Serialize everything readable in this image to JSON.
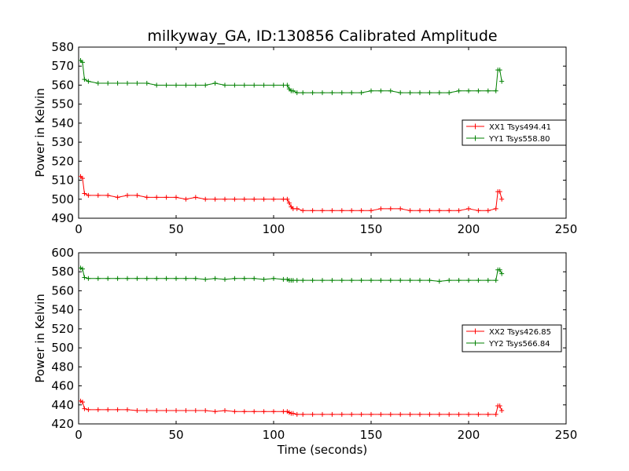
{
  "title": "milkyway_GA, ID:130856 Calibrated Amplitude",
  "colors": {
    "xx": "#ff0000",
    "yy": "#008000"
  },
  "chart_data": [
    {
      "type": "line",
      "title": "milkyway_GA, ID:130856 Calibrated Amplitude",
      "xlabel": "",
      "ylabel": "Power in Kelvin",
      "xlim": [
        0,
        250
      ],
      "ylim": [
        490,
        580
      ],
      "xticks": [
        0,
        50,
        100,
        150,
        200,
        250
      ],
      "yticks": [
        490,
        500,
        510,
        520,
        530,
        540,
        550,
        560,
        570,
        580
      ],
      "grid": false,
      "legend_position": "center-right",
      "marker": "plus",
      "series": [
        {
          "name": "XX1 Tsys494.41",
          "color": "#ff0000",
          "x": [
            1,
            2,
            3,
            5,
            10,
            15,
            20,
            25,
            30,
            35,
            40,
            45,
            50,
            55,
            60,
            65,
            70,
            75,
            80,
            85,
            90,
            95,
            100,
            105,
            107,
            108,
            109,
            110,
            112,
            115,
            120,
            125,
            130,
            135,
            140,
            145,
            150,
            155,
            160,
            165,
            170,
            175,
            180,
            185,
            190,
            195,
            200,
            205,
            210,
            214,
            215,
            216,
            217
          ],
          "y": [
            512,
            511,
            503,
            502,
            502,
            502,
            501,
            502,
            502,
            501,
            501,
            501,
            501,
            500,
            501,
            500,
            500,
            500,
            500,
            500,
            500,
            500,
            500,
            500,
            500,
            498,
            496,
            495,
            495,
            494,
            494,
            494,
            494,
            494,
            494,
            494,
            494,
            495,
            495,
            495,
            494,
            494,
            494,
            494,
            494,
            494,
            495,
            494,
            494,
            495,
            504,
            504,
            500
          ]
        },
        {
          "name": "YY1 Tsys558.80",
          "color": "#008000",
          "x": [
            1,
            2,
            3,
            5,
            10,
            15,
            20,
            25,
            30,
            35,
            40,
            45,
            50,
            55,
            60,
            65,
            70,
            75,
            80,
            85,
            90,
            95,
            100,
            105,
            107,
            108,
            109,
            110,
            112,
            115,
            120,
            125,
            130,
            135,
            140,
            145,
            150,
            155,
            160,
            165,
            170,
            175,
            180,
            185,
            190,
            195,
            200,
            205,
            210,
            214,
            215,
            216,
            217
          ],
          "y": [
            573,
            572,
            563,
            562,
            561,
            561,
            561,
            561,
            561,
            561,
            560,
            560,
            560,
            560,
            560,
            560,
            561,
            560,
            560,
            560,
            560,
            560,
            560,
            560,
            560,
            558,
            557,
            557,
            556,
            556,
            556,
            556,
            556,
            556,
            556,
            556,
            557,
            557,
            557,
            556,
            556,
            556,
            556,
            556,
            556,
            557,
            557,
            557,
            557,
            557,
            568,
            568,
            562
          ]
        }
      ]
    },
    {
      "type": "line",
      "title": "",
      "xlabel": "Time (seconds)",
      "ylabel": "Power in Kelvin",
      "xlim": [
        0,
        250
      ],
      "ylim": [
        420,
        600
      ],
      "xticks": [
        0,
        50,
        100,
        150,
        200,
        250
      ],
      "yticks": [
        420,
        440,
        460,
        480,
        500,
        520,
        540,
        560,
        580,
        600
      ],
      "grid": false,
      "legend_position": "center-right",
      "marker": "plus",
      "series": [
        {
          "name": "XX2 Tsys426.85",
          "color": "#ff0000",
          "x": [
            1,
            2,
            3,
            5,
            10,
            15,
            20,
            25,
            30,
            35,
            40,
            45,
            50,
            55,
            60,
            65,
            70,
            75,
            80,
            85,
            90,
            95,
            100,
            105,
            107,
            108,
            109,
            110,
            112,
            115,
            120,
            125,
            130,
            135,
            140,
            145,
            150,
            155,
            160,
            165,
            170,
            175,
            180,
            185,
            190,
            195,
            200,
            205,
            210,
            214,
            215,
            216,
            217
          ],
          "y": [
            444,
            443,
            436,
            435,
            435,
            435,
            435,
            435,
            434,
            434,
            434,
            434,
            434,
            434,
            434,
            434,
            433,
            434,
            433,
            433,
            433,
            433,
            433,
            433,
            433,
            432,
            431,
            431,
            430,
            430,
            430,
            430,
            430,
            430,
            430,
            430,
            430,
            430,
            430,
            430,
            430,
            430,
            430,
            430,
            430,
            430,
            430,
            430,
            430,
            430,
            439,
            439,
            434
          ]
        },
        {
          "name": "YY2 Tsys566.84",
          "color": "#008000",
          "x": [
            1,
            2,
            3,
            5,
            10,
            15,
            20,
            25,
            30,
            35,
            40,
            45,
            50,
            55,
            60,
            65,
            70,
            75,
            80,
            85,
            90,
            95,
            100,
            105,
            107,
            108,
            109,
            110,
            112,
            115,
            120,
            125,
            130,
            135,
            140,
            145,
            150,
            155,
            160,
            165,
            170,
            175,
            180,
            185,
            190,
            195,
            200,
            205,
            210,
            214,
            215,
            216,
            217
          ],
          "y": [
            584,
            583,
            574,
            573,
            573,
            573,
            573,
            573,
            573,
            573,
            573,
            573,
            573,
            573,
            573,
            572,
            573,
            572,
            573,
            573,
            573,
            572,
            573,
            572,
            572,
            571,
            571,
            571,
            571,
            571,
            571,
            571,
            571,
            571,
            571,
            571,
            571,
            571,
            571,
            571,
            571,
            571,
            571,
            570,
            571,
            571,
            571,
            571,
            571,
            571,
            582,
            582,
            578
          ]
        }
      ]
    }
  ]
}
